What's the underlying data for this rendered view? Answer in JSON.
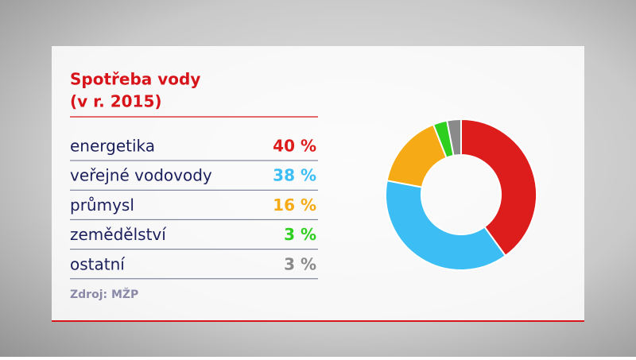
{
  "chart_data": {
    "type": "pie",
    "title": "Spotřeba vody",
    "subtitle": "(v r. 2015)",
    "categories": [
      "energetika",
      "veřejné vodovody",
      "průmysl",
      "zemědělství",
      "ostatní"
    ],
    "values": [
      40,
      38,
      16,
      3,
      3
    ],
    "value_labels": [
      "40 %",
      "38 %",
      "16 %",
      "3 %",
      "3 %"
    ],
    "colors": [
      "#dd1c1c",
      "#3cbef5",
      "#f5aa16",
      "#2ecf1e",
      "#8a8a8a"
    ],
    "source": "Zdroj: MŽP"
  }
}
